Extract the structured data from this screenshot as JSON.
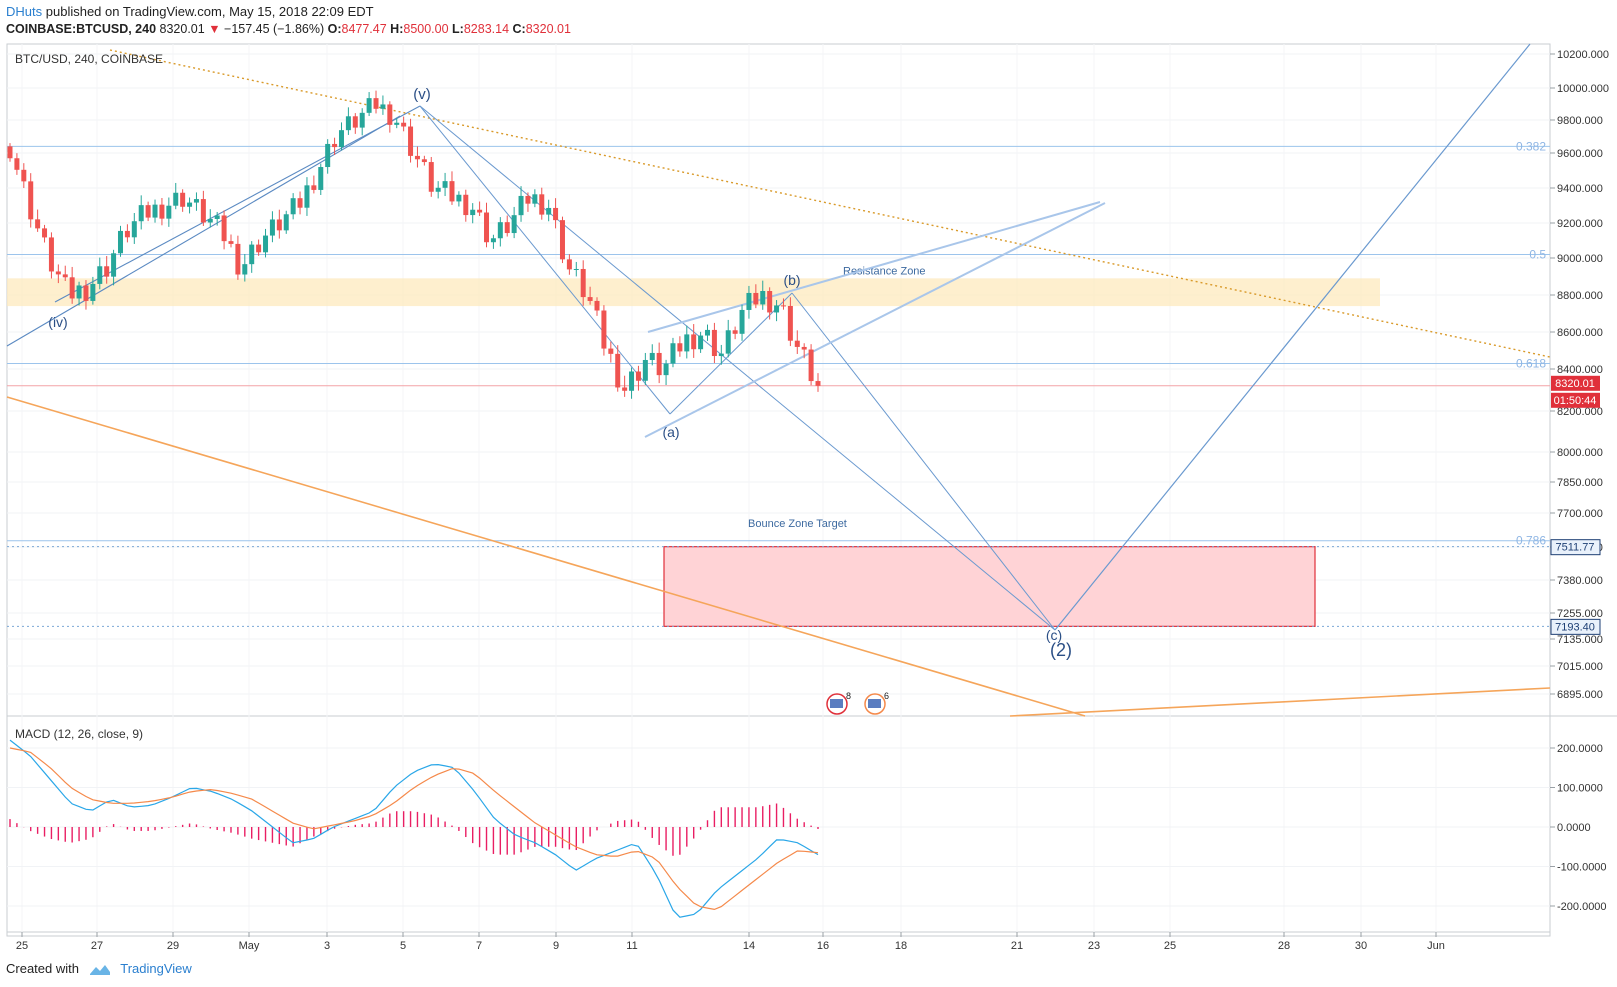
{
  "header": {
    "author": "DHuts",
    "published": "published on TradingView.com, May 15, 2018 22:09 EDT",
    "symbol": "COINBASE:BTCUSD, 240",
    "last": "8320.01",
    "change": "−157.45 (−1.86%)",
    "o_label": "O:",
    "o_value": "8477.47",
    "h_label": "H:",
    "h_value": "8500.00",
    "l_label": "L:",
    "l_value": "8283.14",
    "c_label": "C:",
    "c_value": "8320.01"
  },
  "footer": {
    "created": "Created with",
    "brand": "TradingView"
  },
  "colors": {
    "up": "#26a69a",
    "down": "#ef5350",
    "macd": "#2aa7e8",
    "signal": "#f5894a",
    "hist": "#e91e63",
    "fib": "#9cc4ec"
  },
  "chart_data": [
    {
      "type": "candlestick",
      "title": "BTC/USD, 240, COINBASE",
      "ylim": [
        6895,
        10200
      ],
      "y_ticks": [
        "10200.000",
        "10000.000",
        "9800.000",
        "9600.000",
        "9400.000",
        "9200.000",
        "9000.000",
        "8800.000",
        "8600.000",
        "8400.000",
        "8200.000",
        "8000.000",
        "7850.000",
        "7700.000",
        "7510.000",
        "7380.000",
        "7255.000",
        "7135.000",
        "7015.000",
        "6895.000"
      ],
      "x_ticks": [
        "25",
        "27",
        "29",
        "May",
        "3",
        "5",
        "7",
        "9",
        "11",
        "14",
        "16",
        "18",
        "21",
        "23",
        "25",
        "28",
        "30",
        "Jun"
      ],
      "price_labels": {
        "last": "8320.01",
        "countdown": "01:50:44",
        "zone_top": "7511.77",
        "zone_bottom": "7193.40"
      },
      "fib_levels": [
        {
          "label": "0.382",
          "value": 9640
        },
        {
          "label": "0.5",
          "value": 9020
        },
        {
          "label": "0.618",
          "value": 8430
        },
        {
          "label": "0.786",
          "value": 7545
        }
      ],
      "zones": [
        {
          "name": "Resistance Zone",
          "from": 8740,
          "to": 8890
        },
        {
          "name": "Bounce Zone Target",
          "from": 7193.4,
          "to": 7511.77
        }
      ],
      "wave_labels": [
        "(iv)",
        "(v)",
        "(a)",
        "(b)",
        "(c)",
        "(2)"
      ],
      "event_badges": [
        "8",
        "6"
      ],
      "close_path": [
        9640,
        9300,
        9000,
        8800,
        8840,
        8950,
        9150,
        9250,
        9300,
        9350,
        9250,
        9150,
        8950,
        9100,
        9200,
        9300,
        9500,
        9720,
        9800,
        9900,
        9820,
        9600,
        9400,
        9350,
        9300,
        9100,
        9200,
        9350,
        9300,
        8950,
        8800,
        8500,
        8300,
        8450,
        8400,
        8550,
        8600,
        8480,
        8700,
        8800,
        8750,
        8500,
        8320
      ]
    },
    {
      "type": "line",
      "title": "MACD (12, 26, close, 9)",
      "ylim": [
        -260,
        250
      ],
      "y_ticks": [
        "200.0000",
        "100.0000",
        "0.0000",
        "-100.0000",
        "-200.0000"
      ],
      "series": [
        {
          "name": "MACD",
          "values": [
            220,
            180,
            120,
            60,
            40,
            70,
            50,
            55,
            75,
            100,
            90,
            70,
            40,
            0,
            -40,
            -30,
            0,
            20,
            40,
            100,
            140,
            160,
            150,
            90,
            20,
            -20,
            -40,
            -70,
            -110,
            -80,
            -60,
            -40,
            -120,
            -230,
            -220,
            -160,
            -120,
            -80,
            -30,
            -40,
            -70
          ]
        },
        {
          "name": "Signal",
          "values": [
            200,
            190,
            150,
            100,
            70,
            60,
            60,
            65,
            75,
            90,
            95,
            85,
            70,
            40,
            10,
            -5,
            5,
            15,
            30,
            60,
            100,
            130,
            150,
            135,
            90,
            50,
            10,
            -20,
            -50,
            -70,
            -75,
            -60,
            -80,
            -150,
            -200,
            -210,
            -170,
            -130,
            -90,
            -60,
            -65
          ]
        },
        {
          "name": "Histogram",
          "values": [
            20,
            -10,
            -30,
            -40,
            -30,
            10,
            -10,
            -10,
            0,
            10,
            -5,
            -15,
            -30,
            -40,
            -50,
            -25,
            -5,
            5,
            10,
            40,
            40,
            30,
            0,
            -45,
            -70,
            -70,
            -50,
            -50,
            -60,
            -10,
            15,
            20,
            -40,
            -80,
            -20,
            50,
            50,
            50,
            60,
            20,
            -5
          ]
        }
      ]
    }
  ]
}
